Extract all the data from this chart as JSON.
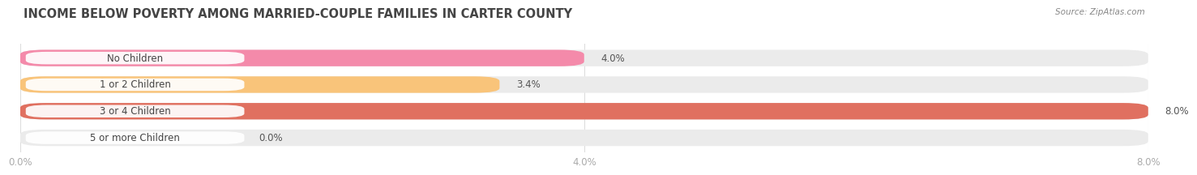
{
  "title": "INCOME BELOW POVERTY AMONG MARRIED-COUPLE FAMILIES IN CARTER COUNTY",
  "source": "Source: ZipAtlas.com",
  "categories": [
    "No Children",
    "1 or 2 Children",
    "3 or 4 Children",
    "5 or more Children"
  ],
  "values": [
    4.0,
    3.4,
    8.0,
    0.0
  ],
  "bar_colors": [
    "#f48aaa",
    "#f9c47a",
    "#e07060",
    "#a8c4e0"
  ],
  "bg_bar_color": "#ebebeb",
  "xlim": [
    0,
    8.0
  ],
  "xticks": [
    0.0,
    4.0,
    8.0
  ],
  "xtick_labels": [
    "0.0%",
    "4.0%",
    "8.0%"
  ],
  "bar_height": 0.62,
  "background_color": "#ffffff",
  "title_fontsize": 10.5,
  "label_fontsize": 8.5,
  "value_fontsize": 8.5,
  "title_color": "#444444",
  "source_color": "#888888",
  "tick_color": "#aaaaaa",
  "label_text_color": "#444444",
  "value_text_color": "#555555",
  "grid_color": "#dddddd"
}
